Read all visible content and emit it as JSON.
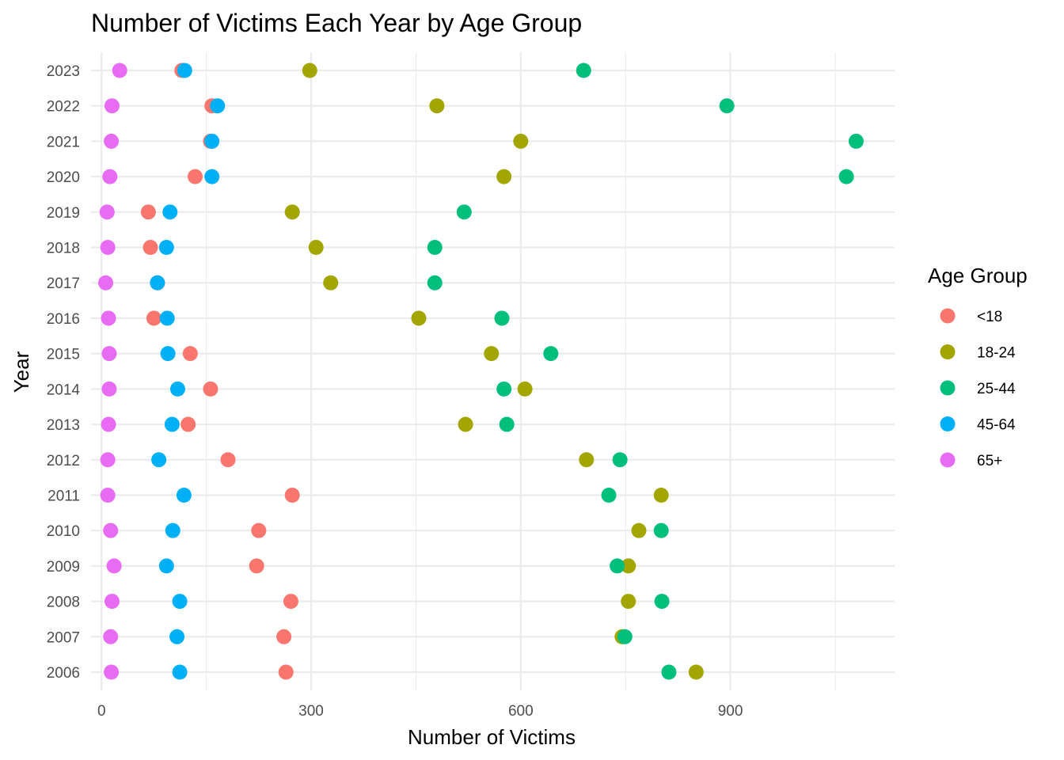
{
  "chart_data": {
    "type": "scatter",
    "title": "Number of Victims Each Year by Age Group",
    "xlabel": "Number of Victims",
    "ylabel": "Year",
    "xlim": [
      -15,
      1135
    ],
    "x_ticks": [
      0,
      300,
      600,
      900
    ],
    "categories": [
      "2006",
      "2007",
      "2008",
      "2009",
      "2010",
      "2011",
      "2012",
      "2013",
      "2014",
      "2015",
      "2016",
      "2017",
      "2018",
      "2019",
      "2020",
      "2021",
      "2022",
      "2023"
    ],
    "grid": true,
    "legend": {
      "title": "Age Group",
      "position": "right"
    },
    "series": [
      {
        "name": "<18",
        "color": "#F8766D",
        "values": [
          264,
          261,
          271,
          222,
          225,
          273,
          181,
          124,
          156,
          127,
          75,
          80,
          70,
          67,
          134,
          156,
          158,
          115
        ]
      },
      {
        "name": "18-24",
        "color": "#A3A500",
        "values": [
          851,
          745,
          754,
          754,
          769,
          801,
          694,
          521,
          606,
          558,
          454,
          328,
          307,
          273,
          576,
          600,
          480,
          298
        ]
      },
      {
        "name": "25-44",
        "color": "#00BF7D",
        "values": [
          812,
          749,
          802,
          738,
          801,
          726,
          742,
          580,
          576,
          643,
          573,
          477,
          477,
          519,
          1066,
          1080,
          895,
          690
        ]
      },
      {
        "name": "45-64",
        "color": "#00B0F6",
        "values": [
          112,
          108,
          112,
          93,
          102,
          118,
          82,
          101,
          109,
          95,
          94,
          80,
          93,
          98,
          158,
          158,
          166,
          119
        ]
      },
      {
        "name": "65+",
        "color": "#E76BF3",
        "values": [
          14,
          13,
          15,
          18,
          13,
          9,
          9,
          10,
          11,
          11,
          10,
          6,
          9,
          8,
          12,
          14,
          15,
          26
        ]
      }
    ]
  }
}
